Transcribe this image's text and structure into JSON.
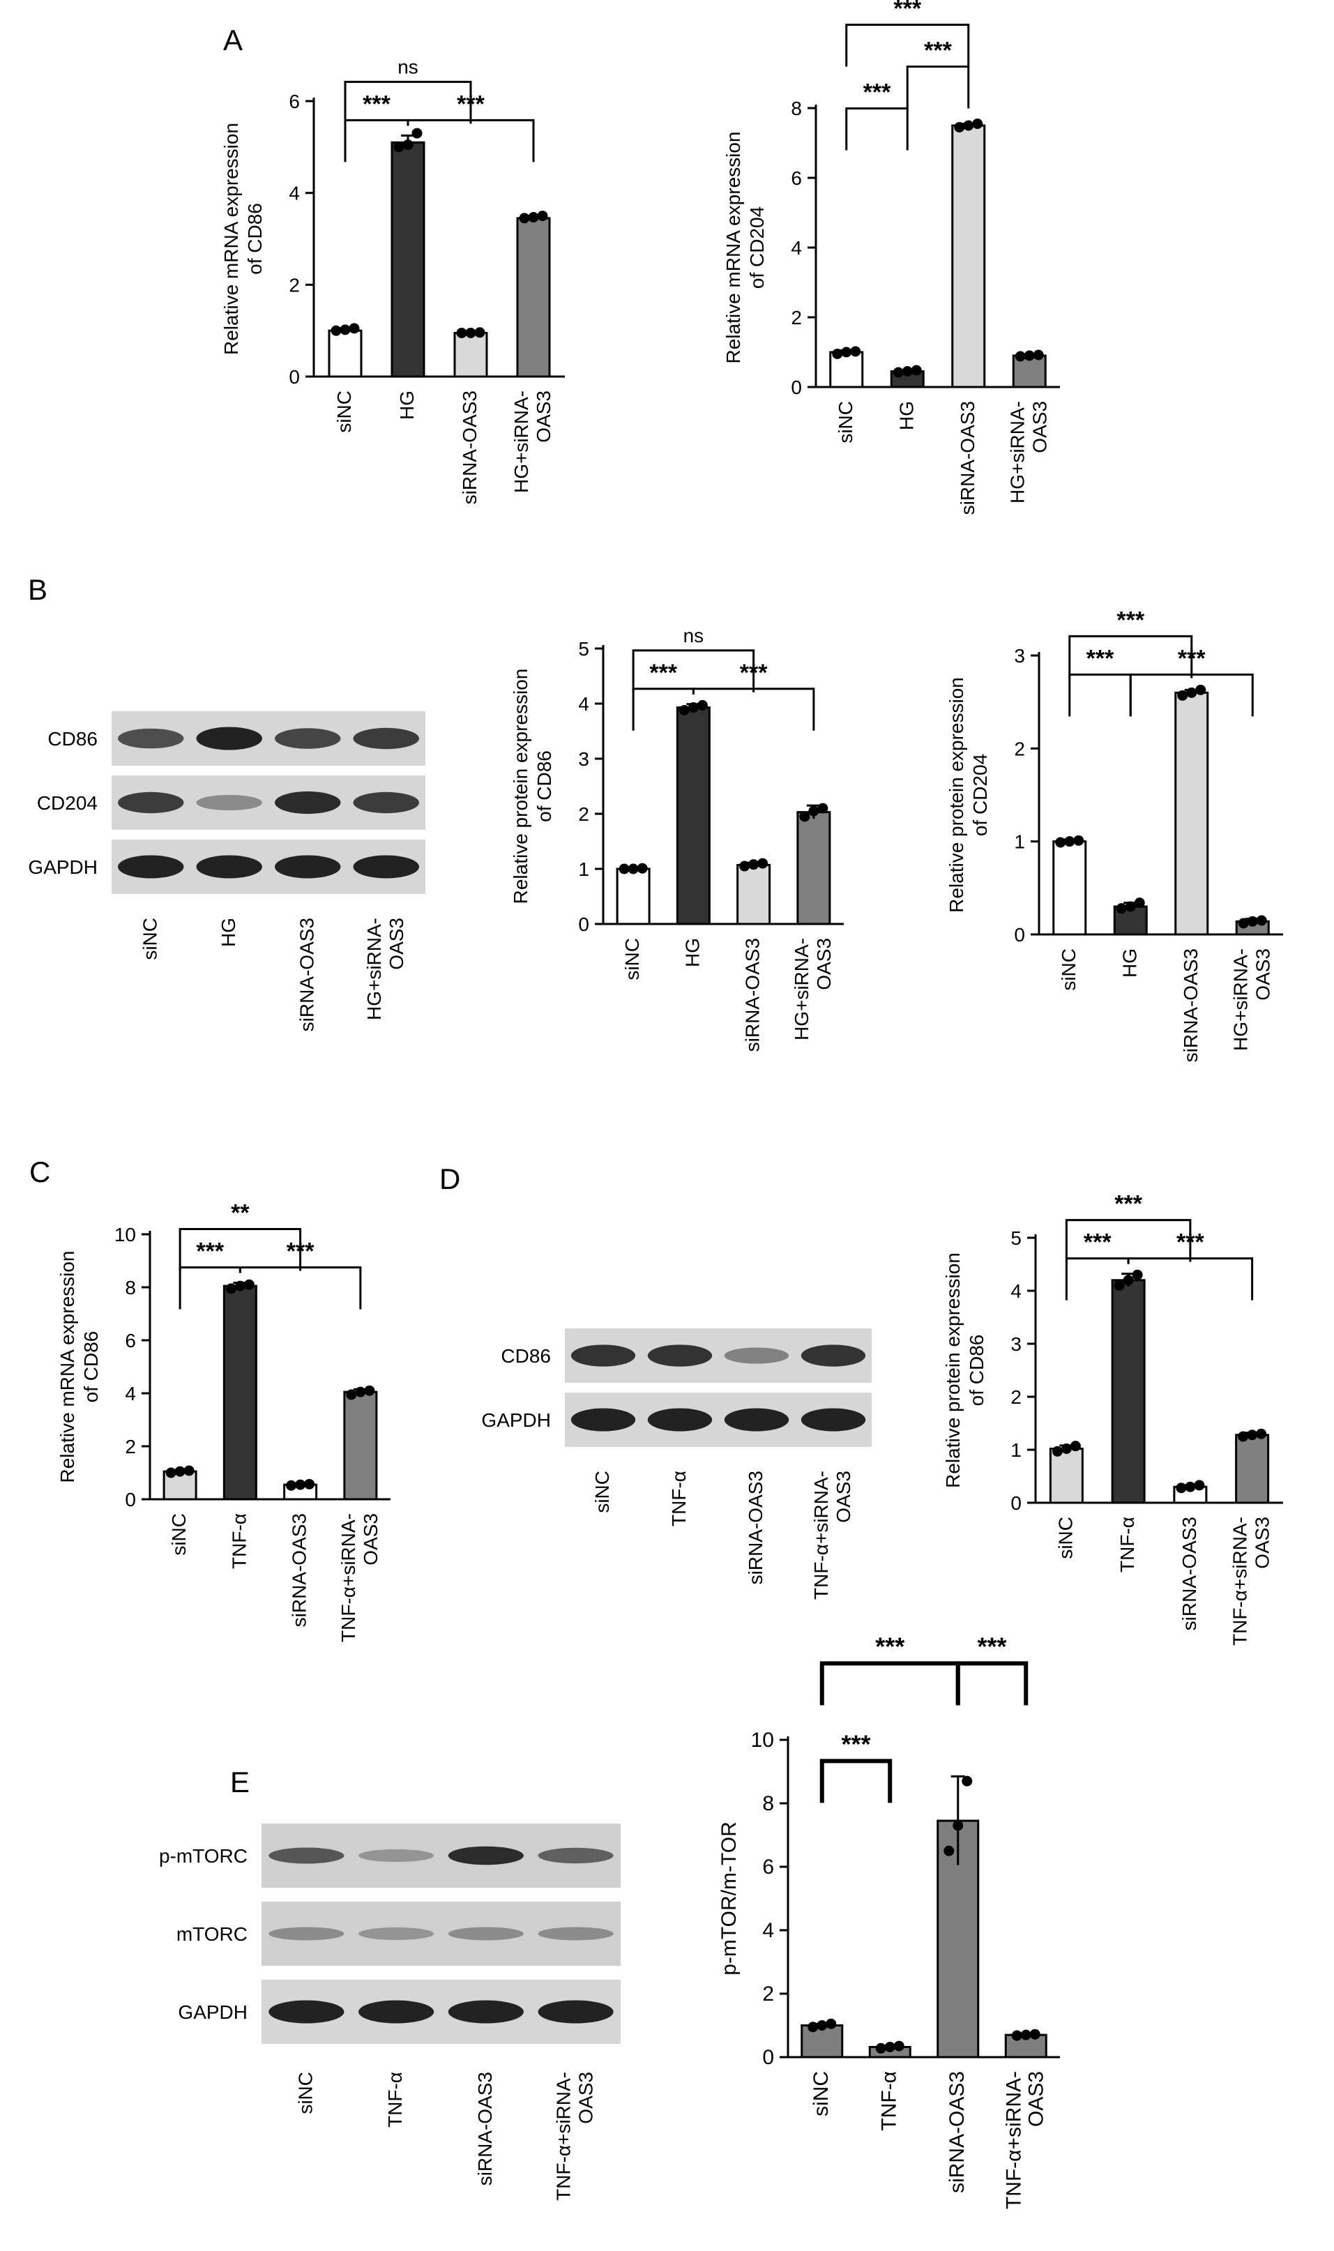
{
  "panels": [
    {
      "id": "A",
      "letter": "A"
    },
    {
      "id": "B",
      "letter": "B"
    },
    {
      "id": "C",
      "letter": "C"
    },
    {
      "id": "D",
      "letter": "D"
    },
    {
      "id": "E",
      "letter": "E"
    }
  ],
  "blots": [
    {
      "id": "blotB",
      "panel": "B",
      "rows": [
        {
          "label": "CD86",
          "bands": [
            0.7,
            0.95,
            0.75,
            0.8
          ],
          "tone": "dark"
        },
        {
          "label": "CD204",
          "bands": [
            0.8,
            0.35,
            0.9,
            0.8
          ],
          "tone": "dark"
        },
        {
          "label": "GAPDH",
          "bands": [
            0.95,
            0.95,
            0.95,
            0.95
          ],
          "tone": "dark"
        }
      ],
      "lanes": [
        "siNC",
        "HG",
        "siRNA-OAS3",
        "HG+siRNA-\nOAS3"
      ]
    },
    {
      "id": "blotD",
      "panel": "D",
      "rows": [
        {
          "label": "CD86",
          "bands": [
            0.85,
            0.85,
            0.4,
            0.85
          ],
          "tone": "dark"
        },
        {
          "label": "GAPDH",
          "bands": [
            0.95,
            0.95,
            0.95,
            0.95
          ],
          "tone": "dark"
        }
      ],
      "lanes": [
        "siNC",
        "TNF-α",
        "siRNA-OAS3",
        "TNF-α+siRNA-\nOAS3"
      ]
    },
    {
      "id": "blotE",
      "panel": "E",
      "rows": [
        {
          "label": "p-mTORC",
          "bands": [
            0.65,
            0.3,
            0.9,
            0.6
          ],
          "tone": "light"
        },
        {
          "label": "mTORC",
          "bands": [
            0.35,
            0.3,
            0.35,
            0.35
          ],
          "tone": "light"
        },
        {
          "label": "GAPDH",
          "bands": [
            0.95,
            0.95,
            0.95,
            0.95
          ],
          "tone": "dark"
        }
      ],
      "lanes": [
        "siNC",
        "TNF-α",
        "siRNA-OAS3",
        "TNF-α+siRNA-\nOAS3"
      ]
    }
  ],
  "chart_data": [
    {
      "id": "A1",
      "panel": "A",
      "type": "bar",
      "title": "",
      "ylabel": "Relative mRNA expression\nof CD86",
      "xlabel": "",
      "ylim": [
        0,
        6
      ],
      "yticks": [
        0,
        2,
        4,
        6
      ],
      "categories": [
        "siNC",
        "HG",
        "siRNA-OAS3",
        "HG+siRNA-\nOAS3"
      ],
      "values": [
        1.0,
        5.1,
        0.95,
        3.45
      ],
      "errors": [
        0.05,
        0.15,
        0.03,
        0.05
      ],
      "points": [
        [
          1.0,
          1.02,
          1.05
        ],
        [
          5.0,
          5.05,
          5.3
        ],
        [
          0.95,
          0.95,
          0.96
        ],
        [
          3.45,
          3.47,
          3.5
        ]
      ],
      "bar_colors": [
        "#ffffff",
        "#333333",
        "#d9d9d9",
        "#808080"
      ],
      "significance": [
        {
          "from": 0,
          "to": 1,
          "label": "***",
          "level": 1
        },
        {
          "from": 1,
          "to": 3,
          "label": "***",
          "level": 1
        },
        {
          "from": 0,
          "to": 2,
          "label": "ns",
          "level": 2
        }
      ]
    },
    {
      "id": "A2",
      "panel": "A",
      "type": "bar",
      "title": "",
      "ylabel": "Relative mRNA expression\nof CD204",
      "xlabel": "",
      "ylim": [
        0,
        8
      ],
      "yticks": [
        0,
        2,
        4,
        6,
        8
      ],
      "categories": [
        "siNC",
        "HG",
        "siRNA-OAS3",
        "HG+siRNA-\nOAS3"
      ],
      "values": [
        1.0,
        0.45,
        7.5,
        0.9
      ],
      "errors": [
        0.05,
        0.04,
        0.05,
        0.04
      ],
      "points": [
        [
          0.95,
          1.0,
          1.02
        ],
        [
          0.42,
          0.45,
          0.48
        ],
        [
          7.45,
          7.5,
          7.55
        ],
        [
          0.88,
          0.9,
          0.92
        ]
      ],
      "bar_colors": [
        "#ffffff",
        "#333333",
        "#d9d9d9",
        "#808080"
      ],
      "significance": [
        {
          "from": 0,
          "to": 1,
          "label": "***",
          "level": 1
        },
        {
          "from": 1,
          "to": 2,
          "label": "***",
          "level": 2
        },
        {
          "from": 0,
          "to": 2,
          "label": "***",
          "level": 3
        }
      ]
    },
    {
      "id": "B1",
      "panel": "B",
      "type": "bar",
      "title": "",
      "ylabel": "Relative protein expression\nof CD86",
      "xlabel": "",
      "ylim": [
        0,
        5
      ],
      "yticks": [
        0,
        1,
        2,
        3,
        4,
        5
      ],
      "categories": [
        "siNC",
        "HG",
        "siRNA-OAS3",
        "HG+siRNA-\nOAS3"
      ],
      "values": [
        1.0,
        3.93,
        1.07,
        2.03
      ],
      "errors": [
        0.02,
        0.06,
        0.04,
        0.12
      ],
      "points": [
        [
          1.0,
          1.0,
          1.01
        ],
        [
          3.88,
          3.93,
          3.97
        ],
        [
          1.05,
          1.08,
          1.1
        ],
        [
          1.95,
          2.05,
          2.1
        ]
      ],
      "bar_colors": [
        "#ffffff",
        "#333333",
        "#d9d9d9",
        "#808080"
      ],
      "significance": [
        {
          "from": 0,
          "to": 1,
          "label": "***",
          "level": 1
        },
        {
          "from": 1,
          "to": 3,
          "label": "***",
          "level": 1
        },
        {
          "from": 0,
          "to": 2,
          "label": "ns",
          "level": 2
        }
      ]
    },
    {
      "id": "B2",
      "panel": "B",
      "type": "bar",
      "title": "",
      "ylabel": "Relative protein expression\nof CD204",
      "xlabel": "",
      "ylim": [
        0,
        3
      ],
      "yticks": [
        0,
        1,
        2,
        3
      ],
      "categories": [
        "siNC",
        "HG",
        "siRNA-OAS3",
        "HG+siRNA-\nOAS3"
      ],
      "values": [
        1.0,
        0.3,
        2.6,
        0.14
      ],
      "errors": [
        0.02,
        0.04,
        0.03,
        0.03
      ],
      "points": [
        [
          0.99,
          1.0,
          1.01
        ],
        [
          0.28,
          0.3,
          0.34
        ],
        [
          2.57,
          2.6,
          2.63
        ],
        [
          0.12,
          0.14,
          0.15
        ]
      ],
      "bar_colors": [
        "#ffffff",
        "#333333",
        "#d9d9d9",
        "#808080"
      ],
      "significance": [
        {
          "from": 0,
          "to": 1,
          "label": "***",
          "level": 1
        },
        {
          "from": 1,
          "to": 3,
          "label": "***",
          "level": 1
        },
        {
          "from": 0,
          "to": 2,
          "label": "***",
          "level": 2
        }
      ]
    },
    {
      "id": "C1",
      "panel": "C",
      "type": "bar",
      "title": "",
      "ylabel": "Relative mRNA expression\nof CD86",
      "xlabel": "",
      "ylim": [
        0,
        10
      ],
      "yticks": [
        0,
        2,
        4,
        6,
        8,
        10
      ],
      "categories": [
        "siNC",
        "TNF-α",
        "siRNA-OAS3",
        "TNF-α+siRNA-\nOAS3"
      ],
      "values": [
        1.05,
        8.05,
        0.55,
        4.05
      ],
      "errors": [
        0.05,
        0.12,
        0.03,
        0.1
      ],
      "points": [
        [
          1.0,
          1.05,
          1.08
        ],
        [
          7.95,
          8.05,
          8.1
        ],
        [
          0.52,
          0.55,
          0.57
        ],
        [
          3.95,
          4.05,
          4.1
        ]
      ],
      "bar_colors": [
        "#d9d9d9",
        "#333333",
        "#ffffff",
        "#808080"
      ],
      "significance": [
        {
          "from": 0,
          "to": 1,
          "label": "***",
          "level": 1
        },
        {
          "from": 1,
          "to": 3,
          "label": "***",
          "level": 1
        },
        {
          "from": 0,
          "to": 2,
          "label": "**",
          "level": 2
        }
      ]
    },
    {
      "id": "D1",
      "panel": "D",
      "type": "bar",
      "title": "",
      "ylabel": "Relative protein expression\nof CD86",
      "xlabel": "",
      "ylim": [
        0,
        5
      ],
      "yticks": [
        0,
        1,
        2,
        3,
        4,
        5
      ],
      "categories": [
        "siNC",
        "TNF-α",
        "siRNA-OAS3",
        "TNF-α+siRNA-\nOAS3"
      ],
      "values": [
        1.02,
        4.2,
        0.3,
        1.28
      ],
      "errors": [
        0.06,
        0.12,
        0.03,
        0.04
      ],
      "points": [
        [
          0.97,
          1.02,
          1.07
        ],
        [
          4.1,
          4.2,
          4.3
        ],
        [
          0.28,
          0.3,
          0.33
        ],
        [
          1.25,
          1.28,
          1.3
        ]
      ],
      "bar_colors": [
        "#d9d9d9",
        "#333333",
        "#ffffff",
        "#808080"
      ],
      "significance": [
        {
          "from": 0,
          "to": 1,
          "label": "***",
          "level": 1
        },
        {
          "from": 1,
          "to": 3,
          "label": "***",
          "level": 1
        },
        {
          "from": 0,
          "to": 2,
          "label": "***",
          "level": 2
        }
      ]
    },
    {
      "id": "E1",
      "panel": "E",
      "type": "bar",
      "title": "",
      "ylabel": "p-mTOR/m-TOR",
      "xlabel": "",
      "ylim": [
        0,
        10
      ],
      "yticks": [
        0,
        2,
        4,
        6,
        8,
        10
      ],
      "categories": [
        "siNC",
        "TNF-α",
        "siRNA-OAS3",
        "TNF-α+siRNA-\nOAS3"
      ],
      "values": [
        1.0,
        0.32,
        7.45,
        0.7
      ],
      "errors": [
        0.05,
        0.04,
        1.4,
        0.05
      ],
      "points": [
        [
          0.95,
          1.0,
          1.05
        ],
        [
          0.28,
          0.32,
          0.35
        ],
        [
          6.5,
          7.3,
          8.7
        ],
        [
          0.68,
          0.7,
          0.72
        ]
      ],
      "bar_colors": [
        "#7f7f7f",
        "#7f7f7f",
        "#7f7f7f",
        "#7f7f7f"
      ],
      "significance": [
        {
          "from": 0,
          "to": 1,
          "label": "***",
          "level": 1
        },
        {
          "from": 2,
          "to": 3,
          "label": "***",
          "level": 3
        },
        {
          "from": 0,
          "to": 2,
          "label": "***",
          "level": 3
        }
      ]
    }
  ]
}
